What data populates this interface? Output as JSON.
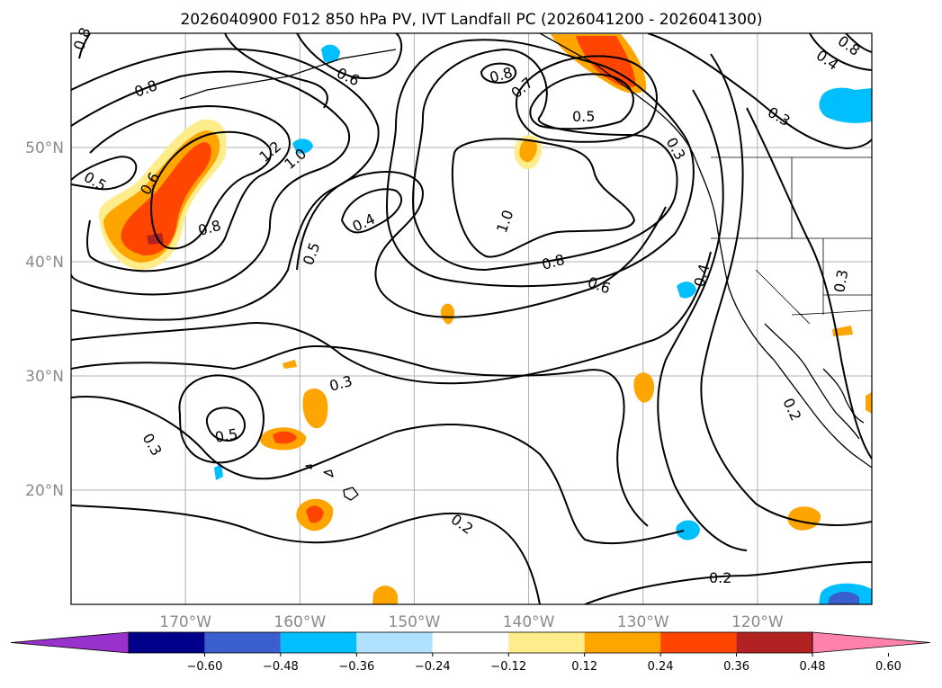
{
  "map": {
    "title": "2026040900 F012 850 hPa PV, IVT Landfall PC (2026041200 - 2026041300)",
    "lat_ticks": [
      {
        "value": 50,
        "label": "50°N"
      },
      {
        "value": 40,
        "label": "40°N"
      },
      {
        "value": 30,
        "label": "30°N"
      },
      {
        "value": 20,
        "label": "20°N"
      }
    ],
    "lon_ticks": [
      {
        "value": -170,
        "label": "170°W"
      },
      {
        "value": -160,
        "label": "160°W"
      },
      {
        "value": -150,
        "label": "150°W"
      },
      {
        "value": -140,
        "label": "140°W"
      },
      {
        "value": -130,
        "label": "130°W"
      },
      {
        "value": -120,
        "label": "120°W"
      }
    ],
    "contour_labels": [
      "0.8",
      "0.8",
      "0.5",
      "0.6",
      "0.8",
      "1.2",
      "1.0",
      "0.6",
      "0.7",
      "0.8",
      "0.5",
      "1.0",
      "0.4",
      "0.5",
      "0.8",
      "0.6",
      "0.4",
      "0.3",
      "0.3",
      "0.5",
      "0.3",
      "0.2",
      "0.2",
      "0.2",
      "0.4",
      "0.8",
      "0.3",
      "0.3"
    ]
  },
  "colorbar": {
    "colors": [
      "#9932cc",
      "#00008b",
      "#3a5fcd",
      "#00bfff",
      "#b0e2ff",
      "#ffffff",
      "#ffec8b",
      "#ffa500",
      "#ff4500",
      "#b22222",
      "#ff82ab"
    ],
    "tick_labels": [
      "−0.60",
      "−0.48",
      "−0.36",
      "−0.24",
      "−0.12",
      "0.12",
      "0.24",
      "0.36",
      "0.48",
      "0.60"
    ]
  }
}
